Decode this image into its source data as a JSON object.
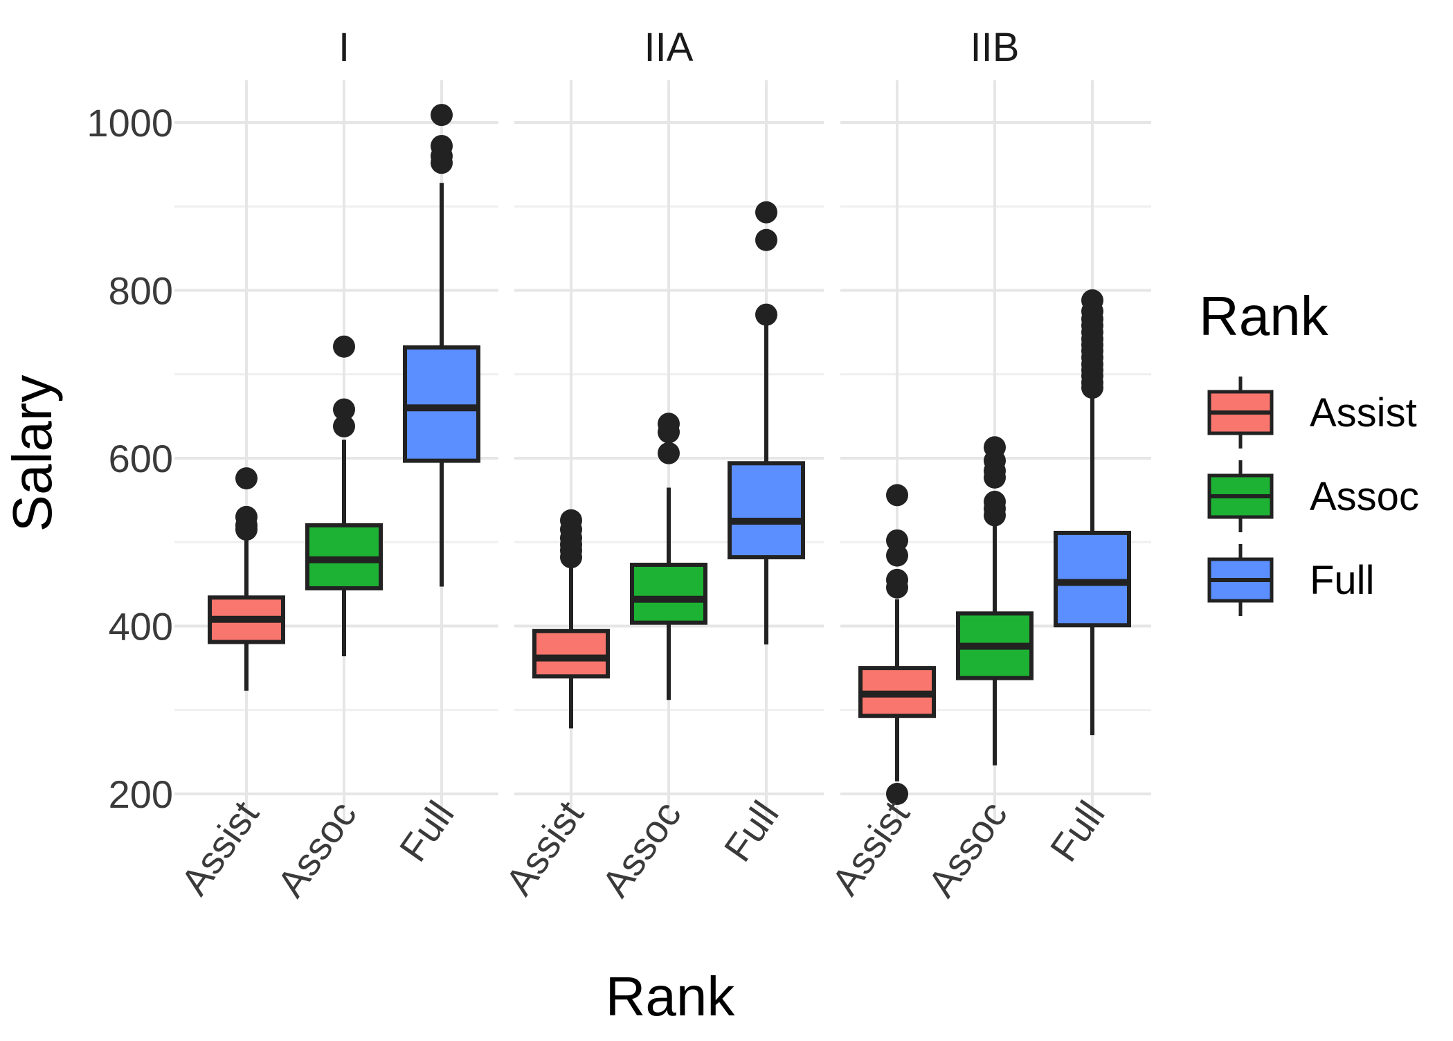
{
  "chart_data": {
    "type": "boxplot",
    "title": "",
    "xlabel": "Rank",
    "ylabel": "Salary",
    "ylim": [
      170,
      1020
    ],
    "yticks": [
      200,
      400,
      600,
      800,
      1000
    ],
    "grid": true,
    "legend": {
      "title": "Rank",
      "position": "right",
      "entries": [
        "Assist",
        "Assoc",
        "Full"
      ]
    },
    "colors": {
      "Assist": "#F8766D",
      "Assoc": "#1DB233",
      "Full": "#5B8EFF"
    },
    "categories": [
      "Assist",
      "Assoc",
      "Full"
    ],
    "facets": [
      {
        "label": "I",
        "boxes": [
          {
            "category": "Assist",
            "lower_whisker": 323,
            "q1": 381,
            "median": 408,
            "q3": 434,
            "upper_whisker": 508,
            "outliers": [
              515,
              520,
              530,
              576
            ]
          },
          {
            "category": "Assoc",
            "lower_whisker": 364,
            "q1": 445,
            "median": 479,
            "q3": 520,
            "upper_whisker": 622,
            "outliers": [
              638,
              658,
              733
            ]
          },
          {
            "category": "Full",
            "lower_whisker": 447,
            "q1": 597,
            "median": 660,
            "q3": 732,
            "upper_whisker": 928,
            "outliers": [
              952,
              960,
              972,
              1009
            ]
          }
        ]
      },
      {
        "label": "IIA",
        "boxes": [
          {
            "category": "Assist",
            "lower_whisker": 278,
            "q1": 340,
            "median": 362,
            "q3": 394,
            "upper_whisker": 475,
            "outliers": [
              482,
              490,
              497,
              505,
              515,
              526
            ]
          },
          {
            "category": "Assoc",
            "lower_whisker": 312,
            "q1": 404,
            "median": 432,
            "q3": 473,
            "upper_whisker": 565,
            "outliers": [
              606,
              631,
              641
            ]
          },
          {
            "category": "Full",
            "lower_whisker": 378,
            "q1": 482,
            "median": 525,
            "q3": 594,
            "upper_whisker": 760,
            "outliers": [
              771,
              860,
              893
            ]
          }
        ]
      },
      {
        "label": "IIB",
        "boxes": [
          {
            "category": "Assist",
            "lower_whisker": 215,
            "q1": 293,
            "median": 319,
            "q3": 350,
            "upper_whisker": 432,
            "outliers": [
              200,
              446,
              455,
              484,
              502,
              556
            ]
          },
          {
            "category": "Assoc",
            "lower_whisker": 234,
            "q1": 338,
            "median": 376,
            "q3": 415,
            "upper_whisker": 525,
            "outliers": [
              532,
              540,
              548,
              577,
              585,
              597,
              613
            ]
          },
          {
            "category": "Full",
            "lower_whisker": 270,
            "q1": 401,
            "median": 452,
            "q3": 511,
            "upper_whisker": 676,
            "outliers": [
              684,
              690,
              698,
              705,
              712,
              720,
              728,
              735,
              742,
              750,
              758,
              766,
              775,
              788
            ]
          }
        ]
      }
    ]
  }
}
